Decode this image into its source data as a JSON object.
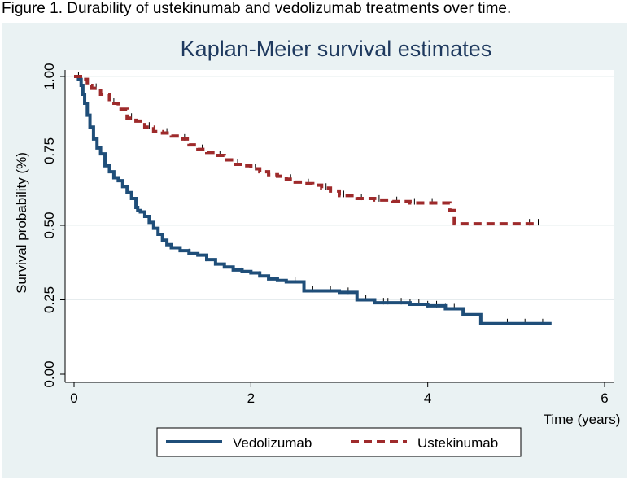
{
  "caption": "Figure 1. Durability of ustekinumab and vedolizumab treatments over time.",
  "colors": {
    "background": "#eaf2f3",
    "plot_area": "#ffffff",
    "title": "#1f3a5f",
    "vedolizumab": "#1f4e79",
    "ustekinumab": "#9e2a2b",
    "censor_marks": "#000000"
  },
  "chart_data": {
    "type": "line",
    "title": "Kaplan-Meier survival estimates",
    "xlabel": "Time (years)",
    "ylabel": "Survival probability (%)",
    "xlim": [
      0,
      6
    ],
    "ylim": [
      0,
      1
    ],
    "x_ticks": [
      0,
      2,
      4,
      6
    ],
    "y_ticks": [
      0,
      0.25,
      0.5,
      0.75,
      1
    ],
    "x_tick_labels": [
      "0",
      "2",
      "4",
      "6"
    ],
    "y_tick_labels": [
      "0.00",
      "0.25",
      "0.50",
      "0.75",
      "1.00"
    ],
    "grid": true,
    "legend_position": "bottom",
    "series": [
      {
        "name": "Vedolizumab",
        "style": "solid",
        "x": [
          0,
          0.05,
          0.08,
          0.1,
          0.12,
          0.15,
          0.18,
          0.22,
          0.26,
          0.3,
          0.35,
          0.4,
          0.45,
          0.5,
          0.55,
          0.6,
          0.65,
          0.7,
          0.72,
          0.75,
          0.8,
          0.85,
          0.9,
          0.95,
          1.0,
          1.05,
          1.1,
          1.2,
          1.3,
          1.4,
          1.5,
          1.6,
          1.7,
          1.8,
          1.9,
          2.0,
          2.1,
          2.2,
          2.3,
          2.4,
          2.6,
          2.8,
          3.0,
          3.2,
          3.4,
          3.6,
          3.8,
          4.0,
          4.2,
          4.4,
          4.6,
          4.8,
          5.0,
          5.2,
          5.4
        ],
        "y": [
          1.0,
          0.99,
          0.97,
          0.94,
          0.91,
          0.87,
          0.83,
          0.79,
          0.76,
          0.74,
          0.7,
          0.68,
          0.66,
          0.65,
          0.63,
          0.61,
          0.59,
          0.56,
          0.55,
          0.545,
          0.53,
          0.51,
          0.49,
          0.47,
          0.45,
          0.435,
          0.425,
          0.415,
          0.405,
          0.4,
          0.385,
          0.37,
          0.36,
          0.35,
          0.345,
          0.34,
          0.33,
          0.32,
          0.315,
          0.31,
          0.28,
          0.28,
          0.275,
          0.25,
          0.24,
          0.24,
          0.235,
          0.23,
          0.22,
          0.2,
          0.17,
          0.17,
          0.17,
          0.17,
          0.17
        ],
        "censor_x": [
          1.3,
          1.5,
          1.9,
          2.1,
          2.5,
          2.7,
          2.9,
          3.1,
          3.3,
          3.5,
          3.55,
          3.7,
          3.8,
          3.9,
          4.0,
          4.1,
          4.2,
          4.3,
          4.4,
          4.9,
          5.1,
          5.3
        ]
      },
      {
        "name": "Ustekinumab",
        "style": "dashed",
        "x": [
          0,
          0.1,
          0.15,
          0.2,
          0.3,
          0.4,
          0.5,
          0.6,
          0.7,
          0.8,
          0.9,
          1.0,
          1.1,
          1.2,
          1.3,
          1.4,
          1.5,
          1.6,
          1.7,
          1.8,
          1.9,
          2.0,
          2.1,
          2.2,
          2.3,
          2.4,
          2.5,
          2.6,
          2.7,
          2.8,
          2.9,
          3.0,
          3.2,
          3.4,
          3.6,
          3.8,
          4.0,
          4.2,
          4.25,
          4.3,
          4.6,
          4.9,
          5.2
        ],
        "y": [
          1.0,
          0.99,
          0.97,
          0.96,
          0.94,
          0.91,
          0.89,
          0.86,
          0.85,
          0.83,
          0.815,
          0.81,
          0.8,
          0.79,
          0.77,
          0.755,
          0.745,
          0.735,
          0.72,
          0.705,
          0.7,
          0.69,
          0.68,
          0.67,
          0.665,
          0.655,
          0.645,
          0.64,
          0.635,
          0.625,
          0.615,
          0.6,
          0.59,
          0.585,
          0.58,
          0.575,
          0.575,
          0.575,
          0.55,
          0.505,
          0.505,
          0.505,
          0.505
        ],
        "censor_x": [
          0.05,
          0.25,
          0.45,
          0.65,
          0.85,
          1.05,
          1.25,
          1.45,
          1.65,
          1.85,
          2.05,
          2.25,
          2.45,
          2.65,
          2.85,
          3.05,
          3.25,
          3.45,
          3.65,
          3.85,
          4.05,
          5.15,
          5.25
        ]
      }
    ]
  }
}
